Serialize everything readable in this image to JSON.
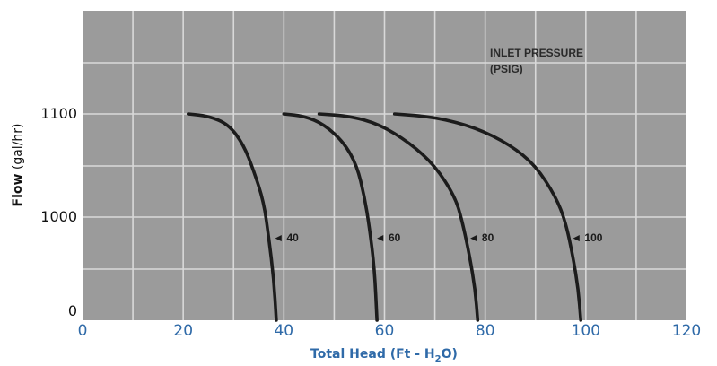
{
  "colors": {
    "plot_bg": "#9b9b9b",
    "grid": "#d9d9d9",
    "curve": "#1c1c1c",
    "x_axis_text": "#2f6aa8",
    "y_axis_text": "#111111"
  },
  "chart_data": {
    "type": "line",
    "xlabel": "Total Head (Ft - H₂O)",
    "xlabel_parts": {
      "main": "Total Head (Ft - H",
      "sub": "2",
      "tail": "O)"
    },
    "ylabel_parts": {
      "bold": "Flow",
      "unit": " (gal/hr)"
    },
    "xlim": [
      0,
      120
    ],
    "x_ticks": [
      "0",
      "20",
      "40",
      "60",
      "80",
      "100",
      "120"
    ],
    "y_ticks": [
      "0",
      "1000",
      "1100"
    ],
    "annotation": {
      "line1": "INLET PRESSURE",
      "line2": "(PSIG)"
    },
    "grid": true,
    "series": [
      {
        "name": "40",
        "label": "◄ 40",
        "points": [
          [
            21,
            1100
          ],
          [
            25,
            1098
          ],
          [
            29,
            1090
          ],
          [
            32,
            1070
          ],
          [
            34,
            1045
          ],
          [
            36,
            1015
          ],
          [
            37,
            980
          ],
          [
            38,
            940
          ],
          [
            38.5,
            900
          ]
        ]
      },
      {
        "name": "60",
        "label": "◄ 60",
        "points": [
          [
            40,
            1100
          ],
          [
            44,
            1098
          ],
          [
            48,
            1090
          ],
          [
            52,
            1072
          ],
          [
            54.5,
            1050
          ],
          [
            56,
            1020
          ],
          [
            57,
            990
          ],
          [
            58,
            950
          ],
          [
            58.5,
            900
          ]
        ]
      },
      {
        "name": "80",
        "label": "◄ 80",
        "points": [
          [
            47,
            1100
          ],
          [
            53,
            1098
          ],
          [
            59,
            1090
          ],
          [
            65,
            1072
          ],
          [
            70,
            1050
          ],
          [
            74,
            1020
          ],
          [
            75.5,
            995
          ],
          [
            77,
            960
          ],
          [
            78,
            930
          ],
          [
            78.5,
            900
          ]
        ]
      },
      {
        "name": "100",
        "label": "◄ 100",
        "points": [
          [
            62,
            1100
          ],
          [
            70,
            1097
          ],
          [
            78,
            1087
          ],
          [
            85,
            1070
          ],
          [
            90,
            1050
          ],
          [
            94,
            1020
          ],
          [
            96,
            995
          ],
          [
            97.5,
            960
          ],
          [
            98.5,
            930
          ],
          [
            99,
            900
          ]
        ]
      }
    ]
  }
}
